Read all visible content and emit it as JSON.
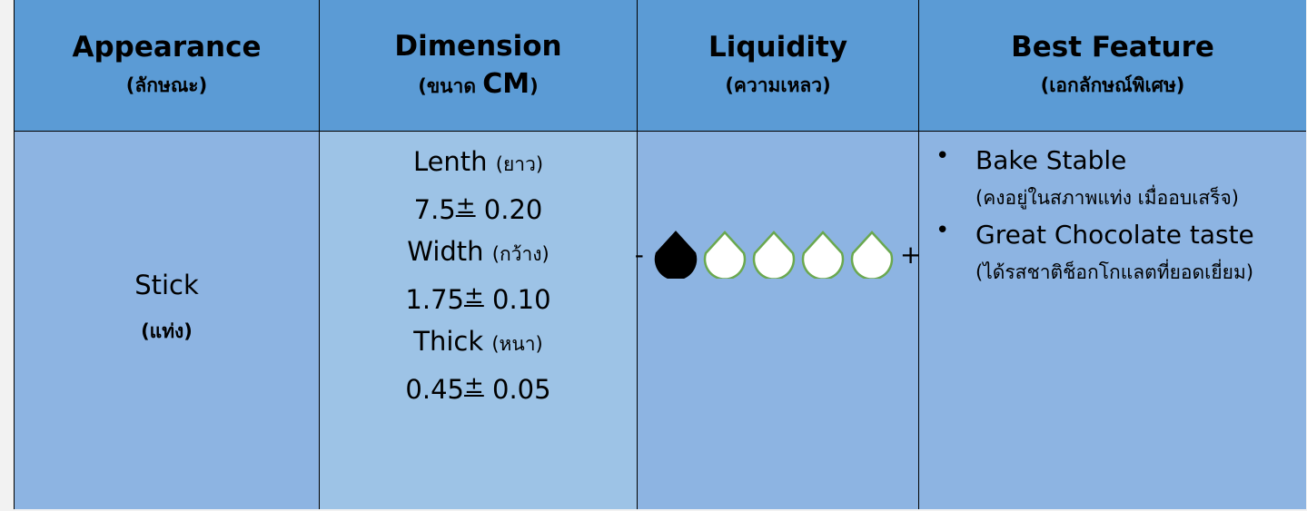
{
  "table": {
    "header": [
      {
        "title": "Appearance",
        "subtitle": [
          "(ลักษณะ)"
        ]
      },
      {
        "title": "Dimension",
        "subtitle": [
          "(ขนาด ",
          "CM",
          ")"
        ]
      },
      {
        "title": "Liquidity",
        "subtitle": [
          "(ความเหลว)"
        ]
      },
      {
        "title": "Best Feature",
        "subtitle": [
          "(เอกลักษณ์พิเศษ)"
        ]
      }
    ],
    "row": {
      "appearance": {
        "text": "Stick",
        "thai": "(แท่ง)"
      },
      "dimensions": [
        {
          "label": "Lenth",
          "thai": "(ยาว)",
          "value": "7.5",
          "plusminus": "±",
          "tolerance": "0.20"
        },
        {
          "label": "Width",
          "thai": "(กว้าง)",
          "value": "1.75",
          "plusminus": "±",
          "tolerance": "0.10"
        },
        {
          "label": "Thick",
          "thai": "(หนา)",
          "value": "0.45",
          "plusminus": "±",
          "tolerance": "0.05"
        }
      ],
      "liquidity": {
        "min_label": "-",
        "max_label": "+",
        "level": 1,
        "scale": 5
      },
      "features": [
        {
          "bullet": "•",
          "title": "Bake Stable",
          "note": "(คงอยู่ในสภาพแท่ง เมื่ออบเสร็จ)"
        },
        {
          "bullet": "•",
          "title": "Great Chocolate taste",
          "note": "(ได้รสชาติช็อกโกแลตที่ยอดเยี่ยม)"
        }
      ]
    }
  }
}
